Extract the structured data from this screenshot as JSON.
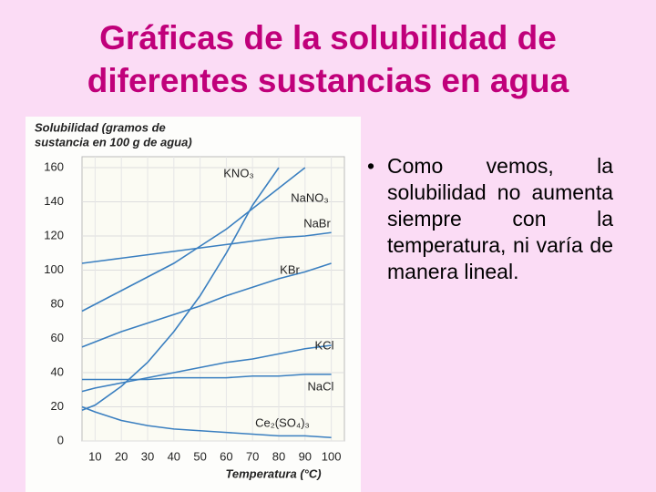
{
  "title": [
    "Gráficas de la solubilidad de",
    "diferentes sustancias en agua"
  ],
  "bullet": "Como vemos, la solubilidad no aumenta siempre con la temperatura, ni varía de manera lineal.",
  "chart_data": {
    "type": "line",
    "ylabel": [
      "Solubilidad (gramos de",
      "sustancia en 100 g de agua)"
    ],
    "xlabel": "Temperatura (°C)",
    "x": [
      5,
      10,
      20,
      30,
      40,
      50,
      60,
      70,
      80,
      90,
      100
    ],
    "xlim": [
      5,
      105
    ],
    "xticks": [
      10,
      20,
      30,
      40,
      50,
      60,
      70,
      80,
      90,
      100
    ],
    "ylim": [
      0,
      160
    ],
    "yticks": [
      0,
      20,
      40,
      60,
      80,
      100,
      120,
      140,
      160
    ],
    "grid": true,
    "series": [
      {
        "name": "KNO₃",
        "color": "#3a7fc0",
        "values": [
          18,
          21,
          32,
          46,
          64,
          85,
          110,
          138,
          160,
          null,
          null
        ]
      },
      {
        "name": "NaNO₃",
        "color": "#3a7fc0",
        "values": [
          76,
          80,
          88,
          96,
          104,
          114,
          124,
          136,
          148,
          160,
          null
        ]
      },
      {
        "name": "NaBr",
        "color": "#3a7fc0",
        "values": [
          104,
          105,
          107,
          109,
          111,
          113,
          115,
          117,
          119,
          120,
          122
        ]
      },
      {
        "name": "KBr",
        "color": "#3a7fc0",
        "values": [
          55,
          58,
          64,
          69,
          74,
          79,
          85,
          90,
          95,
          99,
          104
        ]
      },
      {
        "name": "KCl",
        "color": "#3a7fc0",
        "values": [
          29,
          31,
          34,
          37,
          40,
          43,
          46,
          48,
          51,
          54,
          56
        ]
      },
      {
        "name": "NaCl",
        "color": "#3a7fc0",
        "values": [
          36,
          36,
          36,
          36,
          37,
          37,
          37,
          38,
          38,
          39,
          39
        ]
      },
      {
        "name": "Ce₂(SO₄)₃",
        "color": "#3a7fc0",
        "values": [
          20,
          17,
          12,
          9,
          7,
          6,
          5,
          4,
          3,
          3,
          2
        ]
      }
    ]
  }
}
